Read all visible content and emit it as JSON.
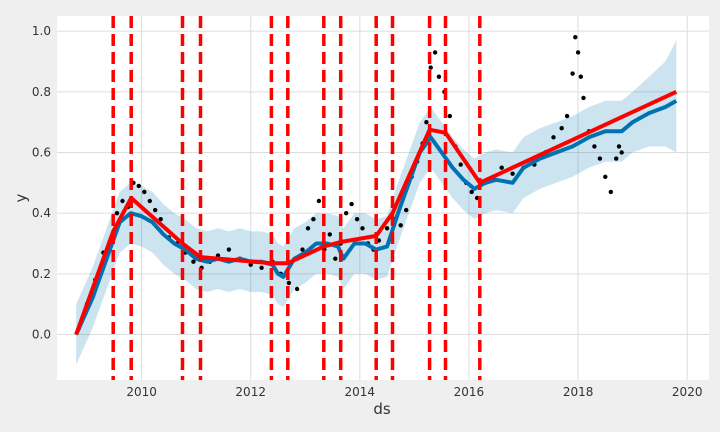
{
  "chart_data": {
    "type": "line",
    "title": "",
    "xlabel": "ds",
    "ylabel": "y",
    "xlim": [
      2008.45,
      2020.4
    ],
    "ylim": [
      -0.15,
      1.05
    ],
    "x_ticks": [
      2010,
      2012,
      2014,
      2016,
      2018,
      2020
    ],
    "x_tick_labels": [
      "2010",
      "2012",
      "2014",
      "2016",
      "2018",
      "2020"
    ],
    "y_ticks": [
      0.0,
      0.2,
      0.4,
      0.6,
      0.8,
      1.0
    ],
    "y_tick_labels": [
      "0.0",
      "0.2",
      "0.4",
      "0.6",
      "0.8",
      "1.0"
    ],
    "grid": true,
    "colors": {
      "background": "#efefef",
      "plot_background": "#ffffff",
      "grid": "#dddddd",
      "observations": "#000000",
      "forecast": "#0072b2",
      "uncertainty": "#0072b2",
      "trend": "#ff0000",
      "changepoints": "#ff0000"
    },
    "changepoints": [
      2009.48,
      2009.81,
      2010.75,
      2011.08,
      2012.38,
      2012.68,
      2013.34,
      2013.65,
      2014.3,
      2014.6,
      2015.28,
      2015.57,
      2016.2
    ],
    "trend": {
      "x": [
        2008.8,
        2009.48,
        2009.81,
        2010.75,
        2011.08,
        2012.38,
        2012.68,
        2013.34,
        2013.65,
        2014.3,
        2014.6,
        2015.28,
        2015.57,
        2016.2,
        2019.8
      ],
      "y": [
        0.0,
        0.34,
        0.45,
        0.3,
        0.255,
        0.235,
        0.235,
        0.29,
        0.305,
        0.325,
        0.4,
        0.675,
        0.665,
        0.5,
        0.8
      ]
    },
    "forecast": {
      "x": [
        2008.8,
        2009.1,
        2009.4,
        2009.6,
        2009.8,
        2010.0,
        2010.2,
        2010.4,
        2010.6,
        2010.8,
        2011.0,
        2011.2,
        2011.4,
        2011.6,
        2011.8,
        2012.0,
        2012.2,
        2012.4,
        2012.5,
        2012.6,
        2012.8,
        2013.0,
        2013.2,
        2013.4,
        2013.6,
        2013.7,
        2013.9,
        2014.1,
        2014.3,
        2014.5,
        2014.7,
        2014.9,
        2015.1,
        2015.3,
        2015.5,
        2015.7,
        2015.9,
        2016.1,
        2016.3,
        2016.5,
        2016.8,
        2017.0,
        2017.3,
        2017.6,
        2017.9,
        2018.2,
        2018.5,
        2018.8,
        2019.0,
        2019.3,
        2019.6,
        2019.8
      ],
      "y": [
        0.0,
        0.12,
        0.27,
        0.37,
        0.4,
        0.39,
        0.37,
        0.33,
        0.3,
        0.28,
        0.25,
        0.24,
        0.25,
        0.24,
        0.25,
        0.24,
        0.24,
        0.23,
        0.2,
        0.19,
        0.25,
        0.27,
        0.3,
        0.3,
        0.29,
        0.25,
        0.3,
        0.3,
        0.28,
        0.29,
        0.4,
        0.5,
        0.6,
        0.65,
        0.6,
        0.55,
        0.51,
        0.48,
        0.5,
        0.51,
        0.5,
        0.55,
        0.58,
        0.6,
        0.62,
        0.65,
        0.67,
        0.67,
        0.7,
        0.73,
        0.75,
        0.77
      ]
    },
    "uncertainty_band": {
      "x": [
        2008.8,
        2009.1,
        2009.4,
        2009.6,
        2009.8,
        2010.0,
        2010.2,
        2010.4,
        2010.6,
        2010.8,
        2011.0,
        2011.2,
        2011.4,
        2011.6,
        2011.8,
        2012.0,
        2012.2,
        2012.4,
        2012.5,
        2012.6,
        2012.8,
        2013.0,
        2013.2,
        2013.4,
        2013.6,
        2013.7,
        2013.9,
        2014.1,
        2014.3,
        2014.5,
        2014.7,
        2014.9,
        2015.1,
        2015.3,
        2015.5,
        2015.7,
        2015.9,
        2016.1,
        2016.3,
        2016.5,
        2016.8,
        2017.0,
        2017.3,
        2017.6,
        2017.9,
        2018.2,
        2018.5,
        2018.8,
        2019.0,
        2019.3,
        2019.6,
        2019.8
      ],
      "lower": [
        -0.1,
        0.02,
        0.17,
        0.27,
        0.3,
        0.29,
        0.27,
        0.23,
        0.2,
        0.18,
        0.15,
        0.14,
        0.15,
        0.14,
        0.15,
        0.14,
        0.14,
        0.13,
        0.1,
        0.09,
        0.15,
        0.17,
        0.2,
        0.2,
        0.19,
        0.15,
        0.2,
        0.2,
        0.18,
        0.19,
        0.3,
        0.4,
        0.5,
        0.55,
        0.5,
        0.45,
        0.41,
        0.38,
        0.4,
        0.41,
        0.4,
        0.45,
        0.48,
        0.5,
        0.52,
        0.55,
        0.57,
        0.57,
        0.6,
        0.62,
        0.62,
        0.6
      ],
      "upper": [
        0.1,
        0.22,
        0.37,
        0.47,
        0.5,
        0.49,
        0.47,
        0.43,
        0.4,
        0.38,
        0.35,
        0.34,
        0.35,
        0.34,
        0.35,
        0.34,
        0.34,
        0.33,
        0.3,
        0.29,
        0.35,
        0.37,
        0.4,
        0.4,
        0.39,
        0.35,
        0.4,
        0.4,
        0.38,
        0.39,
        0.5,
        0.6,
        0.7,
        0.75,
        0.7,
        0.65,
        0.61,
        0.58,
        0.6,
        0.61,
        0.6,
        0.65,
        0.68,
        0.7,
        0.72,
        0.75,
        0.77,
        0.77,
        0.8,
        0.85,
        0.9,
        0.97
      ]
    },
    "observations": {
      "x": [
        2008.85,
        2009.0,
        2009.15,
        2009.3,
        2009.45,
        2009.55,
        2009.65,
        2009.75,
        2009.85,
        2009.95,
        2010.05,
        2010.15,
        2010.25,
        2010.35,
        2010.5,
        2010.65,
        2010.8,
        2010.95,
        2011.1,
        2011.25,
        2011.4,
        2011.6,
        2011.8,
        2012.0,
        2012.2,
        2012.4,
        2012.55,
        2012.7,
        2012.85,
        2012.95,
        2013.05,
        2013.15,
        2013.25,
        2013.35,
        2013.45,
        2013.55,
        2013.65,
        2013.75,
        2013.85,
        2013.95,
        2014.05,
        2014.15,
        2014.25,
        2014.35,
        2014.5,
        2014.65,
        2014.75,
        2014.85,
        2014.95,
        2015.05,
        2015.15,
        2015.22,
        2015.3,
        2015.38,
        2015.45,
        2015.55,
        2015.65,
        2015.75,
        2015.85,
        2015.95,
        2016.05,
        2016.15,
        2016.3,
        2016.45,
        2016.6,
        2016.8,
        2017.0,
        2017.2,
        2017.4,
        2017.55,
        2017.7,
        2017.8,
        2017.9,
        2017.95,
        2018.0,
        2018.05,
        2018.1,
        2018.2,
        2018.3,
        2018.4,
        2018.5,
        2018.6,
        2018.7,
        2018.75,
        2018.8
      ],
      "y": [
        0.02,
        0.1,
        0.18,
        0.27,
        0.32,
        0.4,
        0.44,
        0.42,
        0.5,
        0.49,
        0.47,
        0.44,
        0.41,
        0.38,
        0.32,
        0.3,
        0.27,
        0.24,
        0.22,
        0.24,
        0.26,
        0.28,
        0.25,
        0.23,
        0.22,
        0.24,
        0.2,
        0.17,
        0.15,
        0.28,
        0.35,
        0.38,
        0.44,
        0.28,
        0.33,
        0.25,
        0.3,
        0.4,
        0.43,
        0.38,
        0.35,
        0.3,
        0.28,
        0.31,
        0.35,
        0.38,
        0.36,
        0.41,
        0.52,
        0.57,
        0.63,
        0.7,
        0.88,
        0.93,
        0.85,
        0.8,
        0.72,
        0.62,
        0.56,
        0.5,
        0.47,
        0.45,
        0.5,
        0.52,
        0.55,
        0.53,
        0.55,
        0.56,
        0.6,
        0.65,
        0.68,
        0.72,
        0.86,
        0.98,
        0.93,
        0.85,
        0.78,
        0.67,
        0.62,
        0.58,
        0.52,
        0.47,
        0.58,
        0.62,
        0.6
      ]
    }
  }
}
